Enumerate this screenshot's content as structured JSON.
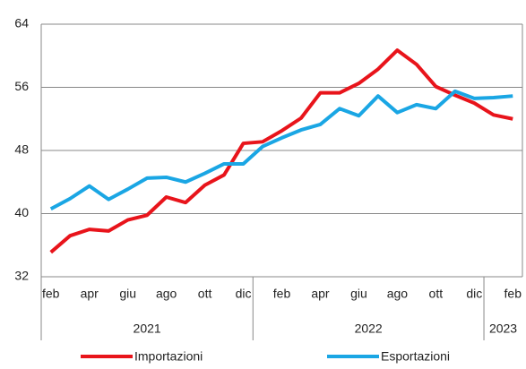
{
  "chart_data": {
    "type": "line",
    "categories": [
      "feb",
      null,
      "apr",
      null,
      "giu",
      null,
      "ago",
      null,
      "ott",
      null,
      "dic",
      null,
      "feb",
      null,
      "apr",
      null,
      "giu",
      null,
      "ago",
      null,
      "ott",
      null,
      "dic",
      null,
      "feb"
    ],
    "groups": [
      {
        "label": "2021",
        "size": 11
      },
      {
        "label": "2022",
        "size": 12
      },
      {
        "label": "2023",
        "size": 2
      }
    ],
    "series": [
      {
        "name": "Importazioni",
        "color": "#e8141b",
        "values": [
          35.1,
          37.2,
          38.0,
          37.8,
          39.2,
          39.8,
          42.1,
          41.4,
          43.6,
          44.9,
          48.9,
          49.1,
          50.5,
          52.1,
          55.3,
          55.3,
          56.5,
          58.3,
          60.7,
          58.9,
          56.1,
          55.0,
          54.0,
          52.5,
          52.0
        ]
      },
      {
        "name": "Esportazioni",
        "color": "#1aa6e4",
        "values": [
          40.6,
          41.9,
          43.5,
          41.8,
          43.1,
          44.5,
          44.6,
          44.0,
          45.1,
          46.3,
          46.3,
          48.5,
          49.6,
          50.6,
          51.3,
          53.3,
          52.4,
          54.9,
          52.8,
          53.8,
          53.3,
          55.5,
          54.6,
          54.7,
          54.9
        ]
      }
    ],
    "ylim": [
      32,
      64
    ],
    "yticks": [
      32,
      40,
      48,
      56,
      64
    ],
    "grid": true
  }
}
